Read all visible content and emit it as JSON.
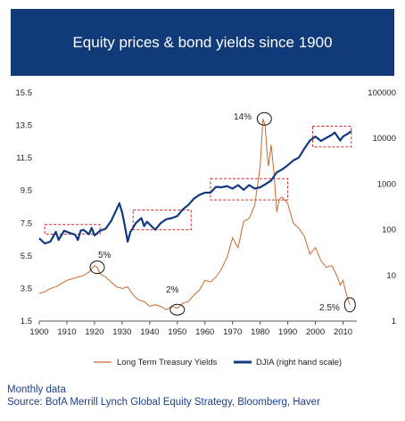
{
  "title": "Equity prices & bond yields since 1900",
  "footer": {
    "line1": "Monthly data",
    "line2": "Source: BofA Merrill Lynch Global Equity Strategy, Bloomberg, Haver"
  },
  "colors": {
    "title_bg": "#113a78",
    "yields_line": "#c8692b",
    "djia_line": "#123a80",
    "highlight_box": "#d62828",
    "note_text": "#1c3f8f"
  },
  "chart_data": {
    "type": "line",
    "x_range": [
      1900,
      2015
    ],
    "x_ticks": [
      1900,
      1910,
      1920,
      1930,
      1940,
      1950,
      1960,
      1970,
      1980,
      1990,
      2000,
      2010
    ],
    "left_axis": {
      "ylim": [
        1.5,
        15.5
      ],
      "ticks": [
        "1.5",
        "3.5",
        "5.5",
        "7.5",
        "9.5",
        "11.5",
        "13.5",
        "15.5"
      ]
    },
    "right_axis": {
      "scale": "log",
      "ylim": [
        1,
        100000
      ],
      "ticks": [
        "1",
        "10",
        "100",
        "1000",
        "10000",
        "100000"
      ]
    },
    "legend_position": "bottom",
    "series": [
      {
        "name": "Long Term Treasury Yields",
        "axis": "left",
        "x": [
          1900,
          1902,
          1904,
          1906,
          1908,
          1910,
          1912,
          1914,
          1916,
          1918,
          1920,
          1921,
          1922,
          1924,
          1926,
          1928,
          1930,
          1932,
          1934,
          1936,
          1938,
          1940,
          1942,
          1944,
          1946,
          1948,
          1950,
          1952,
          1954,
          1956,
          1958,
          1960,
          1962,
          1964,
          1966,
          1968,
          1970,
          1972,
          1974,
          1976,
          1978,
          1980,
          1981,
          1981.8,
          1982.5,
          1983,
          1984,
          1985,
          1986,
          1987,
          1988,
          1990,
          1992,
          1994,
          1996,
          1998,
          2000,
          2002,
          2004,
          2006,
          2008,
          2009,
          2010,
          2011,
          2012,
          2012.5
        ],
        "values": [
          3.2,
          3.3,
          3.5,
          3.6,
          3.8,
          4.0,
          4.1,
          4.2,
          4.3,
          4.5,
          4.9,
          4.8,
          4.4,
          4.2,
          3.9,
          3.6,
          3.5,
          3.6,
          3.1,
          2.8,
          2.7,
          2.4,
          2.5,
          2.4,
          2.2,
          2.4,
          2.3,
          2.6,
          2.7,
          3.1,
          3.4,
          4.0,
          3.9,
          4.2,
          4.7,
          5.4,
          6.6,
          6.0,
          7.6,
          7.8,
          8.6,
          11.0,
          13.9,
          13.5,
          11.8,
          11.0,
          12.3,
          10.6,
          8.2,
          9.0,
          9.1,
          8.7,
          7.5,
          7.2,
          6.7,
          5.6,
          6.0,
          5.2,
          4.8,
          4.9,
          4.2,
          3.7,
          4.0,
          3.3,
          2.7,
          2.5
        ]
      },
      {
        "name": "DJIA (right hand scale)",
        "axis": "right",
        "x": [
          1900,
          1902,
          1904,
          1906,
          1907,
          1909,
          1911,
          1913,
          1914,
          1915,
          1916,
          1918,
          1919,
          1920,
          1922,
          1924,
          1926,
          1928,
          1929,
          1930,
          1931,
          1932,
          1933,
          1935,
          1937,
          1938,
          1939,
          1942,
          1944,
          1946,
          1948,
          1950,
          1952,
          1954,
          1956,
          1958,
          1960,
          1962,
          1964,
          1966,
          1968,
          1970,
          1972,
          1974,
          1976,
          1978,
          1980,
          1982,
          1984,
          1986,
          1988,
          1990,
          1992,
          1994,
          1996,
          1998,
          2000,
          2002,
          2004,
          2006,
          2007,
          2009,
          2010,
          2012,
          2013
        ],
        "values": [
          65,
          50,
          55,
          90,
          60,
          95,
          85,
          78,
          60,
          95,
          100,
          80,
          110,
          75,
          95,
          105,
          155,
          280,
          380,
          240,
          120,
          55,
          90,
          140,
          180,
          120,
          150,
          100,
          140,
          170,
          180,
          200,
          280,
          350,
          480,
          580,
          650,
          650,
          870,
          850,
          900,
          800,
          950,
          750,
          950,
          800,
          850,
          1000,
          1200,
          1800,
          2100,
          2600,
          3300,
          3800,
          6000,
          9000,
          11000,
          8800,
          10300,
          12000,
          13500,
          9000,
          11000,
          13000,
          14500
        ]
      }
    ],
    "annotations": [
      "14%",
      "5%",
      "2%",
      "2.5%"
    ]
  }
}
